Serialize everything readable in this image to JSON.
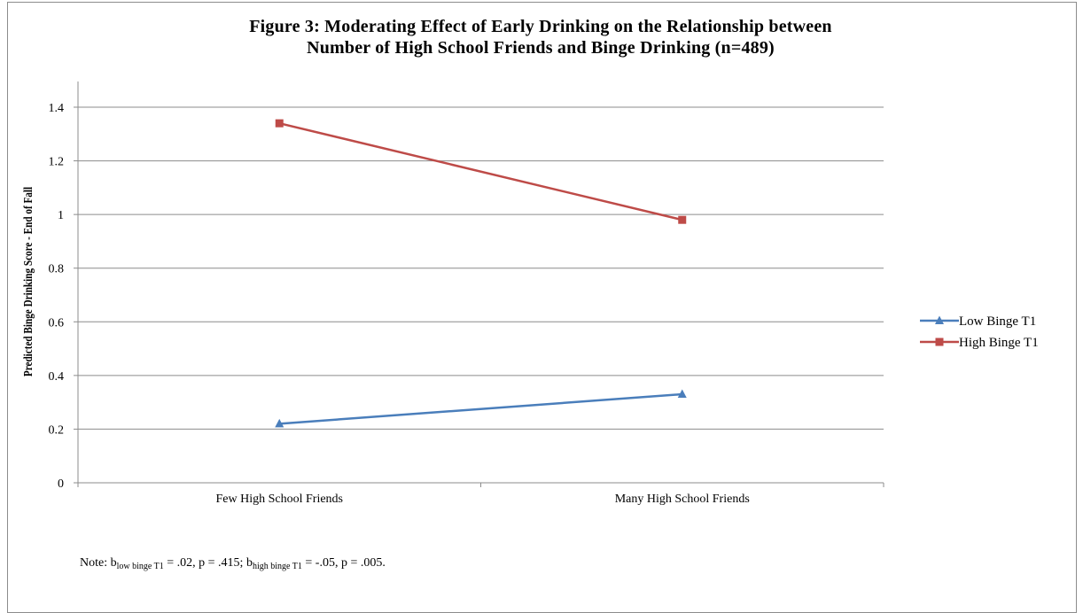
{
  "chart_data": {
    "type": "line",
    "title_line1": "Figure 3:  Moderating Effect of Early Drinking on the Relationship between",
    "title_line2": "Number of High School Friends and Binge Drinking (n=489)",
    "ylabel": "Predicted Binge Drinking Score - End of Fall",
    "xlabel": "",
    "categories": [
      "Few High School Friends",
      "Many High School Friends"
    ],
    "ylim": [
      0,
      1.4
    ],
    "yticks": [
      "0",
      "0.2",
      "0.4",
      "0.6",
      "0.8",
      "1",
      "1.2",
      "1.4"
    ],
    "grid": true,
    "legend_position": "right",
    "series": [
      {
        "name": "Low Binge T1",
        "values": [
          0.22,
          0.33
        ],
        "color": "#4a7ebb",
        "marker": "triangle"
      },
      {
        "name": "High Binge T1",
        "values": [
          1.34,
          0.98
        ],
        "color": "#be4b48",
        "marker": "square"
      }
    ]
  },
  "note": {
    "prefix": "Note:  b",
    "sub1": "low binge T1",
    "mid1": " = .02, p = .415; b",
    "sub2": "high binge T1",
    "end": " = -.05, p = .005."
  }
}
